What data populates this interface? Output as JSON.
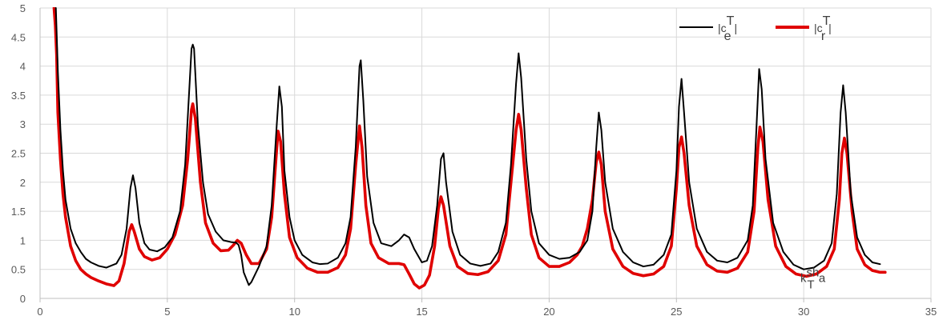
{
  "chart_data": {
    "type": "line",
    "title": "",
    "xlabel": "",
    "ylabel": "",
    "xlim": [
      0,
      35
    ],
    "ylim": [
      0,
      5
    ],
    "x_ticks": [
      0,
      5,
      10,
      15,
      20,
      25,
      30,
      35
    ],
    "y_ticks": [
      0,
      0.5,
      1,
      1.5,
      2,
      2.5,
      3,
      3.5,
      4,
      4.5,
      5
    ],
    "x_tick_labels": [
      "0",
      "5",
      "10",
      "15",
      "20",
      "25",
      "30",
      "35"
    ],
    "y_tick_labels": [
      "0",
      "0.5",
      "1",
      "1.5",
      "2",
      "2.5",
      "3",
      "3.5",
      "4",
      "4.5",
      "5"
    ],
    "grid": true,
    "legend_position": "top-right",
    "annotation": {
      "base": "k",
      "sup": "sh",
      "sub": "T",
      "tail": "a",
      "x": 30.5,
      "y": 0.28
    },
    "series": [
      {
        "name": "|c_e^T|",
        "legend": {
          "prefix": "|c",
          "sup": "T",
          "sub": "e",
          "suffix": "|"
        },
        "color": "#000000",
        "points": [
          [
            0.62,
            5.0
          ],
          [
            0.65,
            4.6
          ],
          [
            0.7,
            3.9
          ],
          [
            0.8,
            2.9
          ],
          [
            0.9,
            2.2
          ],
          [
            1.0,
            1.7
          ],
          [
            1.2,
            1.2
          ],
          [
            1.4,
            0.95
          ],
          [
            1.6,
            0.8
          ],
          [
            1.8,
            0.68
          ],
          [
            2.0,
            0.62
          ],
          [
            2.3,
            0.56
          ],
          [
            2.6,
            0.53
          ],
          [
            3.0,
            0.6
          ],
          [
            3.2,
            0.75
          ],
          [
            3.4,
            1.2
          ],
          [
            3.55,
            1.9
          ],
          [
            3.65,
            2.12
          ],
          [
            3.75,
            1.9
          ],
          [
            3.9,
            1.3
          ],
          [
            4.1,
            0.95
          ],
          [
            4.3,
            0.84
          ],
          [
            4.6,
            0.81
          ],
          [
            4.9,
            0.88
          ],
          [
            5.2,
            1.05
          ],
          [
            5.5,
            1.5
          ],
          [
            5.7,
            2.3
          ],
          [
            5.85,
            3.5
          ],
          [
            5.95,
            4.3
          ],
          [
            6.0,
            4.37
          ],
          [
            6.05,
            4.3
          ],
          [
            6.2,
            3.0
          ],
          [
            6.4,
            2.0
          ],
          [
            6.6,
            1.45
          ],
          [
            6.9,
            1.15
          ],
          [
            7.2,
            1.0
          ],
          [
            7.5,
            0.97
          ],
          [
            7.7,
            0.96
          ],
          [
            7.8,
            0.92
          ],
          [
            7.9,
            0.75
          ],
          [
            8.0,
            0.45
          ],
          [
            8.2,
            0.23
          ],
          [
            8.3,
            0.28
          ],
          [
            8.6,
            0.55
          ],
          [
            8.9,
            0.9
          ],
          [
            9.1,
            1.6
          ],
          [
            9.3,
            3.0
          ],
          [
            9.4,
            3.65
          ],
          [
            9.5,
            3.3
          ],
          [
            9.6,
            2.2
          ],
          [
            9.8,
            1.4
          ],
          [
            10.0,
            1.0
          ],
          [
            10.3,
            0.75
          ],
          [
            10.7,
            0.62
          ],
          [
            11.0,
            0.59
          ],
          [
            11.3,
            0.6
          ],
          [
            11.7,
            0.7
          ],
          [
            12.0,
            0.95
          ],
          [
            12.2,
            1.4
          ],
          [
            12.4,
            2.6
          ],
          [
            12.55,
            4.0
          ],
          [
            12.6,
            4.1
          ],
          [
            12.7,
            3.4
          ],
          [
            12.85,
            2.1
          ],
          [
            13.1,
            1.3
          ],
          [
            13.4,
            0.95
          ],
          [
            13.8,
            0.9
          ],
          [
            14.1,
            1.0
          ],
          [
            14.3,
            1.1
          ],
          [
            14.5,
            1.05
          ],
          [
            14.7,
            0.85
          ],
          [
            15.0,
            0.62
          ],
          [
            15.2,
            0.65
          ],
          [
            15.4,
            0.9
          ],
          [
            15.6,
            1.6
          ],
          [
            15.75,
            2.4
          ],
          [
            15.85,
            2.5
          ],
          [
            15.95,
            2.0
          ],
          [
            16.2,
            1.15
          ],
          [
            16.5,
            0.75
          ],
          [
            16.9,
            0.6
          ],
          [
            17.3,
            0.56
          ],
          [
            17.7,
            0.6
          ],
          [
            18.0,
            0.8
          ],
          [
            18.3,
            1.3
          ],
          [
            18.5,
            2.3
          ],
          [
            18.7,
            3.7
          ],
          [
            18.8,
            4.22
          ],
          [
            18.9,
            3.8
          ],
          [
            19.1,
            2.4
          ],
          [
            19.3,
            1.5
          ],
          [
            19.6,
            0.95
          ],
          [
            20.0,
            0.75
          ],
          [
            20.4,
            0.68
          ],
          [
            20.8,
            0.7
          ],
          [
            21.2,
            0.8
          ],
          [
            21.5,
            1.0
          ],
          [
            21.7,
            1.5
          ],
          [
            21.85,
            2.6
          ],
          [
            21.95,
            3.2
          ],
          [
            22.05,
            2.9
          ],
          [
            22.2,
            2.0
          ],
          [
            22.5,
            1.2
          ],
          [
            22.9,
            0.8
          ],
          [
            23.3,
            0.62
          ],
          [
            23.7,
            0.55
          ],
          [
            24.1,
            0.58
          ],
          [
            24.5,
            0.75
          ],
          [
            24.8,
            1.1
          ],
          [
            25.0,
            2.2
          ],
          [
            25.1,
            3.3
          ],
          [
            25.2,
            3.78
          ],
          [
            25.3,
            3.2
          ],
          [
            25.5,
            2.0
          ],
          [
            25.8,
            1.2
          ],
          [
            26.2,
            0.8
          ],
          [
            26.6,
            0.65
          ],
          [
            27.0,
            0.62
          ],
          [
            27.4,
            0.7
          ],
          [
            27.8,
            1.0
          ],
          [
            28.0,
            1.6
          ],
          [
            28.15,
            3.0
          ],
          [
            28.25,
            3.95
          ],
          [
            28.35,
            3.6
          ],
          [
            28.5,
            2.4
          ],
          [
            28.8,
            1.3
          ],
          [
            29.2,
            0.8
          ],
          [
            29.6,
            0.58
          ],
          [
            30.0,
            0.5
          ],
          [
            30.4,
            0.53
          ],
          [
            30.8,
            0.65
          ],
          [
            31.1,
            0.95
          ],
          [
            31.3,
            1.8
          ],
          [
            31.45,
            3.2
          ],
          [
            31.55,
            3.67
          ],
          [
            31.65,
            3.2
          ],
          [
            31.85,
            1.8
          ],
          [
            32.1,
            1.05
          ],
          [
            32.4,
            0.75
          ],
          [
            32.7,
            0.62
          ],
          [
            33.0,
            0.59
          ]
        ]
      },
      {
        "name": "|c_r^T|",
        "legend": {
          "prefix": "|c",
          "sup": "T",
          "sub": "r",
          "suffix": "|"
        },
        "color": "#e00000",
        "points": [
          [
            0.55,
            5.0
          ],
          [
            0.6,
            4.7
          ],
          [
            0.65,
            4.2
          ],
          [
            0.7,
            3.2
          ],
          [
            0.8,
            2.4
          ],
          [
            0.9,
            1.8
          ],
          [
            1.0,
            1.4
          ],
          [
            1.2,
            0.9
          ],
          [
            1.4,
            0.65
          ],
          [
            1.6,
            0.5
          ],
          [
            1.8,
            0.42
          ],
          [
            2.0,
            0.36
          ],
          [
            2.3,
            0.3
          ],
          [
            2.6,
            0.25
          ],
          [
            2.9,
            0.22
          ],
          [
            3.1,
            0.3
          ],
          [
            3.3,
            0.6
          ],
          [
            3.5,
            1.15
          ],
          [
            3.6,
            1.27
          ],
          [
            3.7,
            1.15
          ],
          [
            3.9,
            0.85
          ],
          [
            4.1,
            0.72
          ],
          [
            4.4,
            0.66
          ],
          [
            4.7,
            0.7
          ],
          [
            5.0,
            0.85
          ],
          [
            5.3,
            1.1
          ],
          [
            5.6,
            1.6
          ],
          [
            5.8,
            2.4
          ],
          [
            5.95,
            3.25
          ],
          [
            6.0,
            3.35
          ],
          [
            6.1,
            3.1
          ],
          [
            6.3,
            2.0
          ],
          [
            6.5,
            1.3
          ],
          [
            6.8,
            0.95
          ],
          [
            7.1,
            0.82
          ],
          [
            7.4,
            0.83
          ],
          [
            7.6,
            0.92
          ],
          [
            7.75,
            1.0
          ],
          [
            7.9,
            0.95
          ],
          [
            8.1,
            0.75
          ],
          [
            8.3,
            0.6
          ],
          [
            8.6,
            0.6
          ],
          [
            8.9,
            0.85
          ],
          [
            9.1,
            1.4
          ],
          [
            9.25,
            2.3
          ],
          [
            9.35,
            2.88
          ],
          [
            9.45,
            2.7
          ],
          [
            9.6,
            1.8
          ],
          [
            9.8,
            1.05
          ],
          [
            10.1,
            0.7
          ],
          [
            10.5,
            0.52
          ],
          [
            10.9,
            0.45
          ],
          [
            11.3,
            0.45
          ],
          [
            11.7,
            0.53
          ],
          [
            12.0,
            0.75
          ],
          [
            12.2,
            1.2
          ],
          [
            12.4,
            2.3
          ],
          [
            12.55,
            2.97
          ],
          [
            12.65,
            2.6
          ],
          [
            12.8,
            1.6
          ],
          [
            13.0,
            0.95
          ],
          [
            13.3,
            0.7
          ],
          [
            13.7,
            0.6
          ],
          [
            14.1,
            0.6
          ],
          [
            14.3,
            0.58
          ],
          [
            14.5,
            0.42
          ],
          [
            14.7,
            0.25
          ],
          [
            14.9,
            0.18
          ],
          [
            15.1,
            0.23
          ],
          [
            15.3,
            0.4
          ],
          [
            15.5,
            0.9
          ],
          [
            15.65,
            1.55
          ],
          [
            15.75,
            1.75
          ],
          [
            15.85,
            1.6
          ],
          [
            16.1,
            0.9
          ],
          [
            16.4,
            0.55
          ],
          [
            16.8,
            0.43
          ],
          [
            17.2,
            0.41
          ],
          [
            17.6,
            0.46
          ],
          [
            18.0,
            0.65
          ],
          [
            18.3,
            1.1
          ],
          [
            18.5,
            2.0
          ],
          [
            18.7,
            2.9
          ],
          [
            18.8,
            3.17
          ],
          [
            18.9,
            2.9
          ],
          [
            19.1,
            1.9
          ],
          [
            19.3,
            1.1
          ],
          [
            19.6,
            0.7
          ],
          [
            20.0,
            0.55
          ],
          [
            20.4,
            0.55
          ],
          [
            20.8,
            0.62
          ],
          [
            21.1,
            0.75
          ],
          [
            21.3,
            0.9
          ],
          [
            21.5,
            1.2
          ],
          [
            21.7,
            1.7
          ],
          [
            21.85,
            2.35
          ],
          [
            21.95,
            2.52
          ],
          [
            22.05,
            2.3
          ],
          [
            22.2,
            1.5
          ],
          [
            22.5,
            0.85
          ],
          [
            22.9,
            0.55
          ],
          [
            23.3,
            0.43
          ],
          [
            23.7,
            0.39
          ],
          [
            24.1,
            0.42
          ],
          [
            24.5,
            0.55
          ],
          [
            24.8,
            0.9
          ],
          [
            25.0,
            1.9
          ],
          [
            25.1,
            2.6
          ],
          [
            25.2,
            2.78
          ],
          [
            25.3,
            2.5
          ],
          [
            25.5,
            1.6
          ],
          [
            25.8,
            0.9
          ],
          [
            26.2,
            0.58
          ],
          [
            26.6,
            0.47
          ],
          [
            27.0,
            0.45
          ],
          [
            27.4,
            0.52
          ],
          [
            27.8,
            0.8
          ],
          [
            28.05,
            1.5
          ],
          [
            28.2,
            2.6
          ],
          [
            28.28,
            2.95
          ],
          [
            28.4,
            2.7
          ],
          [
            28.6,
            1.7
          ],
          [
            28.9,
            0.9
          ],
          [
            29.3,
            0.55
          ],
          [
            29.7,
            0.42
          ],
          [
            30.1,
            0.38
          ],
          [
            30.5,
            0.42
          ],
          [
            30.9,
            0.55
          ],
          [
            31.2,
            0.85
          ],
          [
            31.4,
            1.7
          ],
          [
            31.5,
            2.5
          ],
          [
            31.6,
            2.76
          ],
          [
            31.7,
            2.5
          ],
          [
            31.9,
            1.5
          ],
          [
            32.1,
            0.85
          ],
          [
            32.4,
            0.58
          ],
          [
            32.7,
            0.48
          ],
          [
            33.0,
            0.45
          ],
          [
            33.2,
            0.45
          ]
        ]
      }
    ]
  }
}
